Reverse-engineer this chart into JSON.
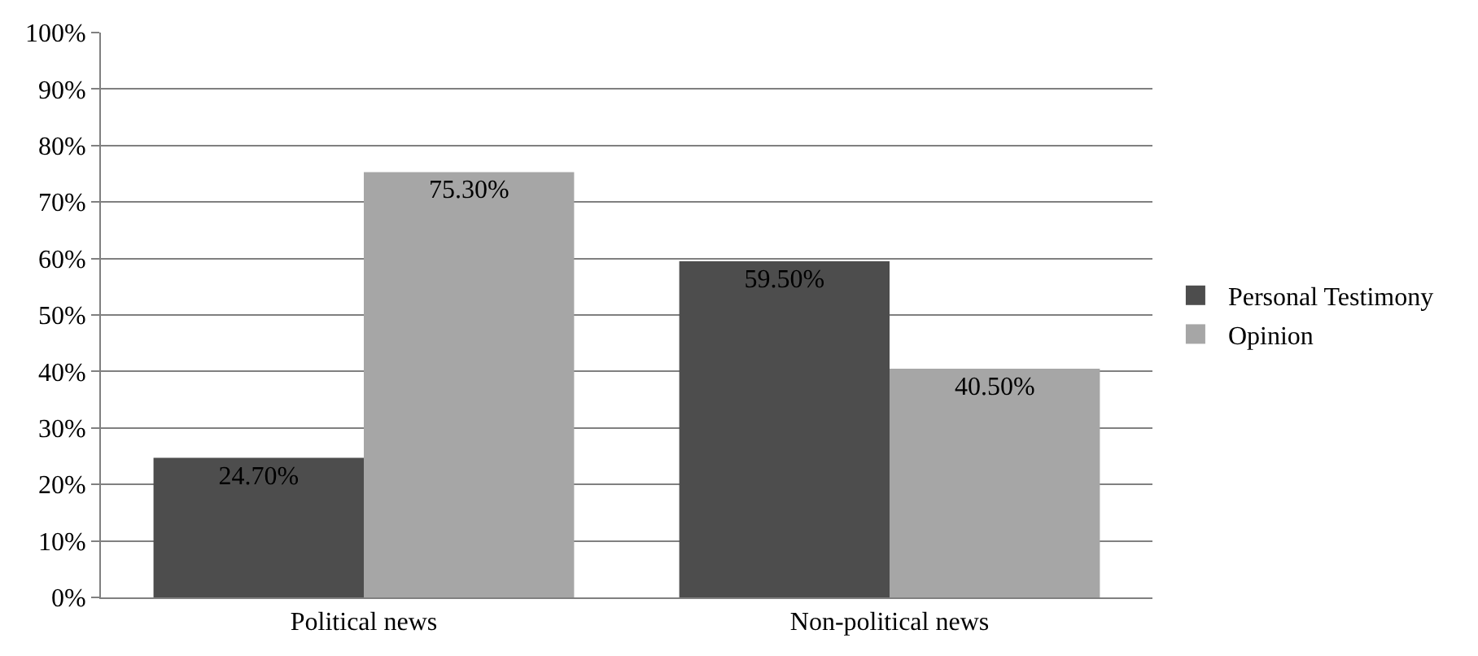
{
  "chart_data": {
    "type": "bar",
    "categories": [
      "Political news",
      "Non-political news"
    ],
    "series": [
      {
        "name": "Personal Testimony",
        "color": "#4d4d4d",
        "values": [
          24.7,
          59.5
        ],
        "value_labels": [
          "24.70%",
          "59.50%"
        ]
      },
      {
        "name": "Opinion",
        "color": "#a6a6a6",
        "values": [
          75.3,
          40.5
        ],
        "value_labels": [
          "75.30%",
          "40.50%"
        ]
      }
    ],
    "ylim": [
      0,
      100
    ],
    "yticks": [
      {
        "value": 0,
        "label": "0%"
      },
      {
        "value": 10,
        "label": "10%"
      },
      {
        "value": 20,
        "label": "20%"
      },
      {
        "value": 30,
        "label": "30%"
      },
      {
        "value": 40,
        "label": "40%"
      },
      {
        "value": 50,
        "label": "50%"
      },
      {
        "value": 60,
        "label": "60%"
      },
      {
        "value": 70,
        "label": "70%"
      },
      {
        "value": 80,
        "label": "80%"
      },
      {
        "value": 90,
        "label": "90%"
      },
      {
        "value": 100,
        "label": "100%"
      }
    ],
    "grid": "y",
    "legend": "right"
  }
}
